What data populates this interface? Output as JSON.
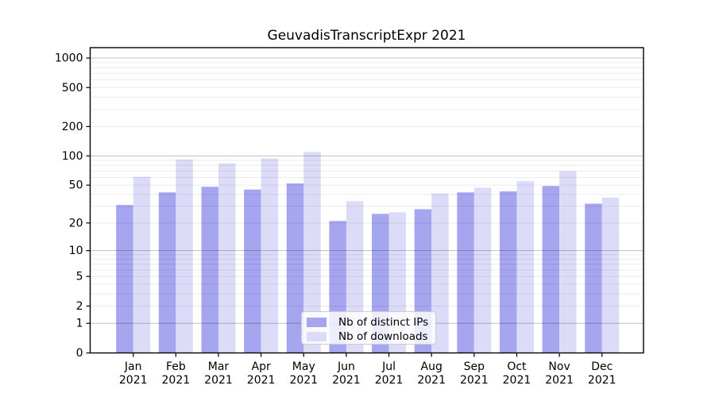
{
  "title": "GeuvadisTranscriptExpr 2021",
  "legend": {
    "items": [
      {
        "label": "Nb of distinct IPs",
        "color": "#a5a5f0"
      },
      {
        "label": "Nb of downloads",
        "color": "#dcdcf9"
      }
    ]
  },
  "chart_data": {
    "type": "bar",
    "title": "GeuvadisTranscriptExpr 2021",
    "categories": [
      "Jan 2021",
      "Feb 2021",
      "Mar 2021",
      "Apr 2021",
      "May 2021",
      "Jun 2021",
      "Jul 2021",
      "Aug 2021",
      "Sep 2021",
      "Oct 2021",
      "Nov 2021",
      "Dec 2021"
    ],
    "series": [
      {
        "name": "Nb of distinct IPs",
        "color": "#a5a5f0",
        "values": [
          31,
          42,
          48,
          45,
          52,
          21,
          25,
          28,
          42,
          43,
          49,
          32
        ]
      },
      {
        "name": "Nb of downloads",
        "color": "#dcdcf9",
        "values": [
          61,
          92,
          84,
          94,
          110,
          34,
          26,
          41,
          47,
          55,
          70,
          37
        ]
      }
    ],
    "xlabel": "",
    "ylabel": "",
    "y_scale": "log1p",
    "y_ticks": [
      0,
      1,
      2,
      5,
      10,
      20,
      50,
      100,
      200,
      500,
      1000
    ],
    "ylim": [
      0,
      1276
    ],
    "grid": "on",
    "legend_position": "lower center",
    "colors": {
      "grid_major": "rgba(0,0,0,0.22)",
      "grid_minor": "rgba(0,0,0,0.08)",
      "spine": "#000000",
      "tick_text": "#000000"
    }
  }
}
